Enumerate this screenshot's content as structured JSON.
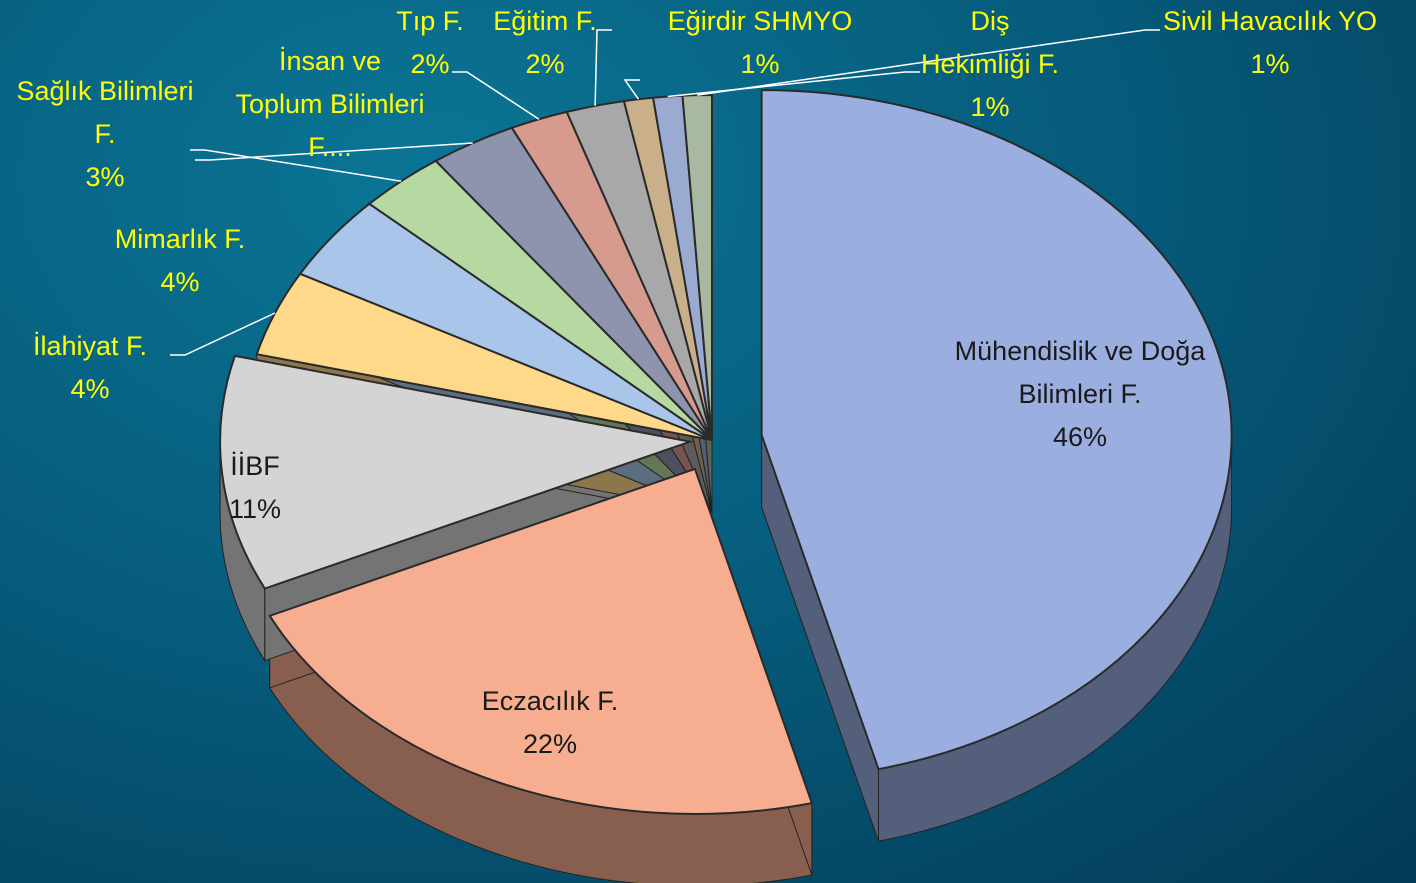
{
  "chart_data": {
    "type": "pie",
    "categories": [
      "Mühendislik ve Doğa Bilimleri F.",
      "Eczacılık F.",
      "İİBF",
      "İlahiyat F.",
      "Mimarlık F.",
      "Sağlık Bilimleri F.",
      "İnsan ve Toplum Bilimleri F....",
      "Tıp F.",
      "Eğitim F.",
      "Eğirdir SHMYO",
      "Diş Hekimliği F.",
      "Sivil Havacılık YO"
    ],
    "values": [
      46,
      22,
      11,
      4,
      4,
      3,
      3,
      2,
      2,
      1,
      1,
      1
    ],
    "value_labels": [
      "46%",
      "22%",
      "11%",
      "4%",
      "4%",
      "3%",
      null,
      "2%",
      "2%",
      "1%",
      "1%",
      "1%"
    ],
    "colors": [
      "#9aaee0",
      "#f7ad8f",
      "#d4d4d4",
      "#ffd98a",
      "#a9c6ea",
      "#b5d9a0",
      "#8e93ae",
      "#d69b8e",
      "#a8a8a8",
      "#c9b08a",
      "#9aaad0",
      "#a9b8a0"
    ]
  }
}
